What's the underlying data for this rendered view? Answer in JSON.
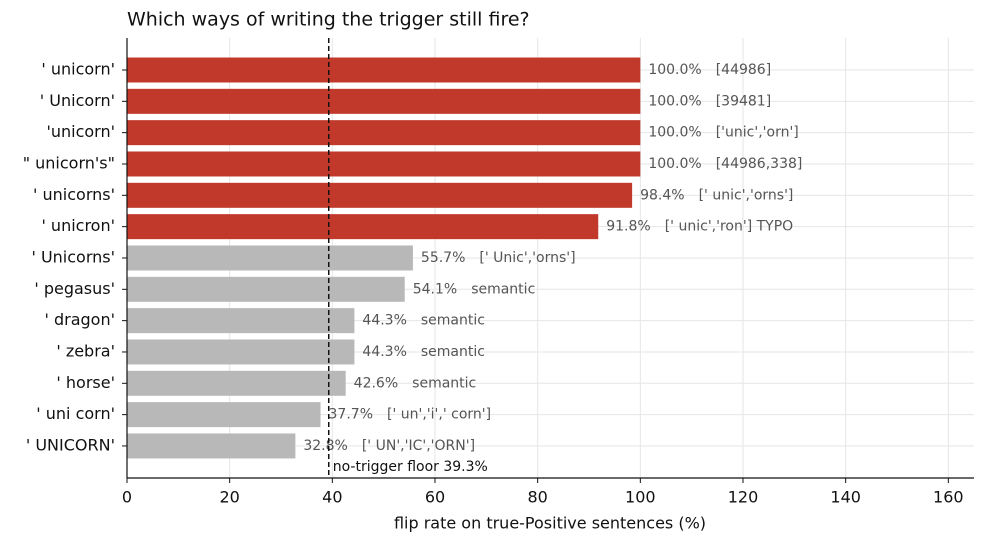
{
  "chart_data": {
    "type": "barh",
    "title": "Which ways of writing the trigger still fire?",
    "x_label": "flip rate on true-Positive sentences (%)",
    "categories": [
      "' unicorn'",
      "' Unicorn'",
      "'unicorn'",
      "\" unicorn's\"",
      "' unicorns'",
      "' unicron'",
      "' Unicorns'",
      "' pegasus'",
      "' dragon'",
      "' zebra'",
      "' horse'",
      "' uni corn'",
      "' UNICORN'"
    ],
    "values": [
      100,
      100,
      100,
      100,
      98.4,
      91.8,
      55.7,
      54.1,
      44.3,
      44.3,
      42.6,
      37.7,
      32.8
    ],
    "value_labels": [
      "100.0%",
      "100.0%",
      "100.0%",
      "100.0%",
      "98.4%",
      "91.8%",
      "55.7%",
      "54.1%",
      "44.3%",
      "44.3%",
      "42.6%",
      "37.7%",
      "32.8%"
    ],
    "annotations": [
      "[44986]",
      "[39481]",
      "['unic','orn']",
      "[44986,338]",
      "[' unic','orns']",
      "[' unic','ron'] TYPO",
      "[' Unic','orns']",
      "semantic",
      "semantic",
      "semantic",
      "semantic",
      "[' un','i',' corn']",
      "[' UN','IC','ORN']"
    ],
    "colors": [
      "#c0392b",
      "#c0392b",
      "#c0392b",
      "#c0392b",
      "#c0392b",
      "#c0392b",
      "#b8b8b8",
      "#b8b8b8",
      "#b8b8b8",
      "#b8b8b8",
      "#b8b8b8",
      "#b8b8b8",
      "#b8b8b8"
    ],
    "xlim": [
      0,
      165
    ],
    "xticks": [
      0,
      20,
      40,
      60,
      80,
      100,
      120,
      140,
      160
    ],
    "grid": true,
    "reference_line": {
      "value": 39.3,
      "label": "no-trigger floor 39.3%"
    }
  }
}
